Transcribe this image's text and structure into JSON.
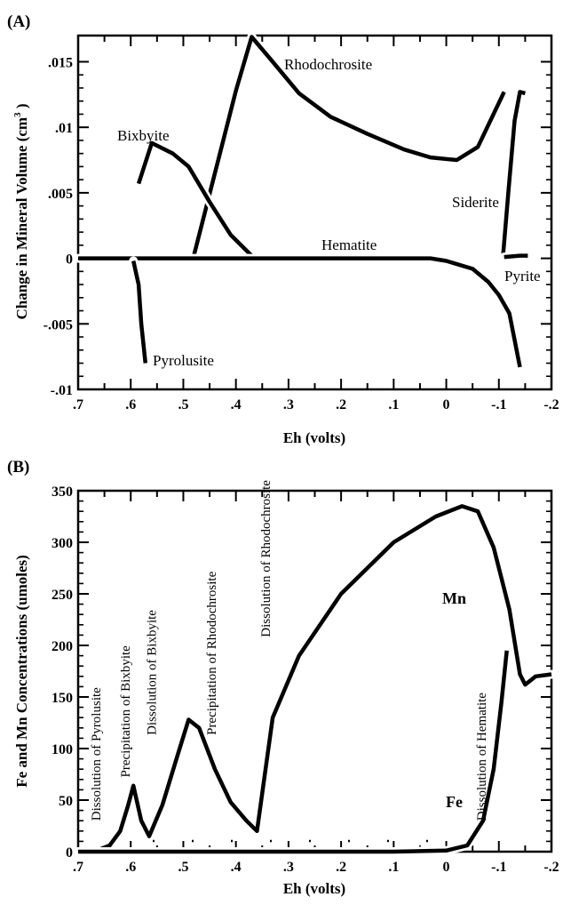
{
  "chart_data": [
    {
      "panel_label": "(A)",
      "type": "line",
      "xlabel": "Eh (volts)",
      "ylabel": "Change in Mineral Volume (cm",
      "ylabel_sup": "3",
      "ylabel_end": " )",
      "xlim": [
        0.7,
        -0.2
      ],
      "ylim": [
        -0.01,
        0.017
      ],
      "x_ticks": [
        0.7,
        0.6,
        0.5,
        0.4,
        0.3,
        0.2,
        0.1,
        0,
        -0.1,
        -0.2
      ],
      "x_tick_labels": [
        ".7",
        ".6",
        ".5",
        ".4",
        ".3",
        ".2",
        ".1",
        "0",
        "-.1",
        "-.2"
      ],
      "y_ticks": [
        0.015,
        0.01,
        0.005,
        0,
        -0.005,
        -0.01
      ],
      "y_tick_labels": [
        ".015",
        ".01",
        ".005",
        "0",
        "-.005",
        "-.01"
      ],
      "series": [
        {
          "name": "Rhodochrosite",
          "x": [
            0.48,
            0.44,
            0.4,
            0.37,
            0.33,
            0.28,
            0.22,
            0.15,
            0.08,
            0.03,
            -0.02,
            -0.06,
            -0.11
          ],
          "y": [
            0.0002,
            0.0065,
            0.0128,
            0.0169,
            0.015,
            0.0126,
            0.0108,
            0.0095,
            0.0083,
            0.0077,
            0.0075,
            0.0085,
            0.0127
          ]
        },
        {
          "name": "Bixbyite",
          "x": [
            0.585,
            0.56,
            0.52,
            0.49,
            0.45,
            0.41,
            0.37,
            0.35
          ],
          "y": [
            0.0057,
            0.0088,
            0.008,
            0.007,
            0.0043,
            0.0018,
            0.0002,
            0.0
          ]
        },
        {
          "name": "Hematite",
          "x": [
            0.7,
            0.6,
            0.5,
            0.4,
            0.3,
            0.2,
            0.1,
            0.03,
            0.0,
            -0.05,
            -0.08,
            -0.1,
            -0.12,
            -0.14
          ],
          "y": [
            0,
            0,
            0,
            0,
            0,
            0,
            0,
            0,
            -0.0002,
            -0.0008,
            -0.0018,
            -0.0028,
            -0.0042,
            -0.0083
          ]
        },
        {
          "name": "Pyrolusite",
          "x": [
            0.595,
            0.585,
            0.58,
            0.572
          ],
          "y": [
            -0.0002,
            -0.002,
            -0.005,
            -0.008
          ]
        },
        {
          "name": "Siderite",
          "x": [
            -0.108,
            -0.118,
            -0.13,
            -0.14,
            -0.15
          ],
          "y": [
            0.0002,
            0.005,
            0.0105,
            0.0127,
            0.0126
          ]
        },
        {
          "name": "Pyrite",
          "x": [
            -0.11,
            -0.14,
            -0.155
          ],
          "y": [
            0.0001,
            0.0002,
            0.0002
          ]
        }
      ]
    },
    {
      "panel_label": "(B)",
      "type": "line",
      "xlabel": "Eh (volts)",
      "ylabel": "Fe and Mn Concentrations (umoles)",
      "xlim": [
        0.7,
        -0.2
      ],
      "ylim": [
        0,
        350
      ],
      "x_ticks": [
        0.7,
        0.6,
        0.5,
        0.4,
        0.3,
        0.2,
        0.1,
        0,
        -0.1,
        -0.2
      ],
      "x_tick_labels": [
        ".7",
        ".6",
        ".5",
        ".4",
        ".3",
        ".2",
        ".1",
        "0",
        "-.1",
        "-.2"
      ],
      "y_ticks": [
        0,
        50,
        100,
        150,
        200,
        250,
        300,
        350
      ],
      "y_tick_labels": [
        "0",
        "50",
        "100",
        "150",
        "200",
        "250",
        "300",
        "350"
      ],
      "series": [
        {
          "name": "Mn",
          "x": [
            0.7,
            0.66,
            0.64,
            0.62,
            0.605,
            0.595,
            0.58,
            0.565,
            0.54,
            0.51,
            0.49,
            0.47,
            0.44,
            0.41,
            0.38,
            0.36,
            0.33,
            0.28,
            0.2,
            0.1,
            0.02,
            -0.03,
            -0.06,
            -0.09,
            -0.12,
            -0.14,
            -0.15,
            -0.17,
            -0.2
          ],
          "y": [
            0,
            2,
            6,
            20,
            45,
            64,
            30,
            15,
            45,
            95,
            128,
            120,
            80,
            48,
            30,
            20,
            130,
            190,
            250,
            300,
            325,
            335,
            330,
            295,
            235,
            172,
            162,
            170,
            172
          ]
        },
        {
          "name": "Fe",
          "x": [
            0.7,
            0.5,
            0.3,
            0.1,
            0.0,
            -0.04,
            -0.07,
            -0.09,
            -0.105,
            -0.115
          ],
          "y": [
            0,
            0,
            0,
            0,
            1,
            6,
            30,
            80,
            145,
            195
          ]
        }
      ],
      "annotations": [
        {
          "text": "Dissolution of Pyrolusite",
          "x": 0.658,
          "y": 30
        },
        {
          "text": "Precipitation of Bixbyite",
          "x": 0.602,
          "y": 72
        },
        {
          "text": "Dissolution of Bixbyite",
          "x": 0.552,
          "y": 113
        },
        {
          "text": "Precipitation of Rhodochrosite",
          "x": 0.438,
          "y": 113
        },
        {
          "text": "Dissolution of Rhodochrosite",
          "x": 0.335,
          "y": 208
        },
        {
          "text": "Dissolution of Hematite",
          "x": -0.075,
          "y": 30
        }
      ]
    }
  ]
}
